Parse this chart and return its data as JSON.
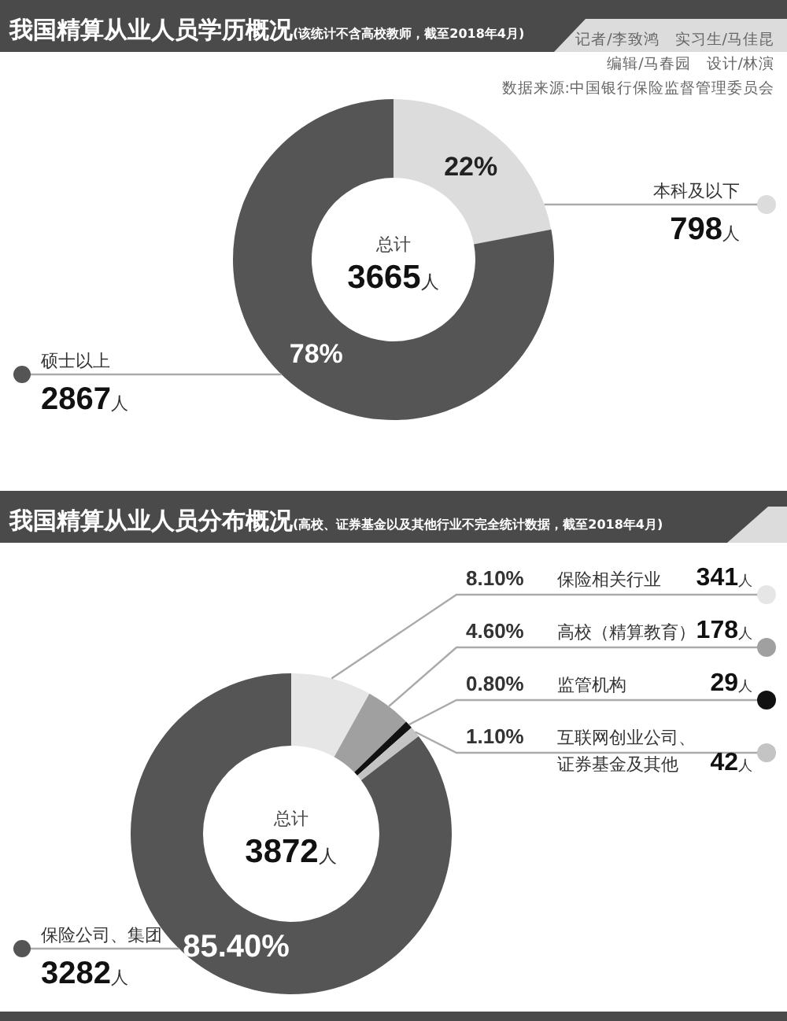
{
  "chart_data": [
    {
      "type": "donut",
      "title": "我国精算从业人员学历概况",
      "subtitle": "(该统计不含高校教师，截至2018年4月)",
      "categories": [
        "本科及以下",
        "硕士以上"
      ],
      "values": [
        22,
        78
      ],
      "colors": [
        "#dcdcdc",
        "#555555"
      ],
      "value_labels": [
        "22%",
        "78%"
      ],
      "annotations": [
        "798人",
        "2867人",
        "总计",
        "3665人",
        "记者/李致鸿　实习生/马佳昆",
        "编辑/马春园　设计/林演",
        "数据来源:中国银行保险监督管理委员会"
      ]
    },
    {
      "type": "donut",
      "title": "我国精算从业人员分布概况",
      "subtitle": "(高校、证券基金以及其他行业不完全统计数据，截至2018年4月)",
      "categories": [
        "保险相关行业",
        "高校（精算教育）",
        "监管机构",
        "互联网创业公司、证券基金及其他",
        "保险公司、集团"
      ],
      "values": [
        8.1,
        4.6,
        0.8,
        1.1,
        85.4
      ],
      "colors": [
        "#e6e6e6",
        "#a0a0a0",
        "#111111",
        "#c4c4c4",
        "#555555"
      ],
      "value_labels": [
        "8.10%",
        "4.60%",
        "0.80%",
        "1.10%",
        "85.40%"
      ],
      "annotations": [
        "341人",
        "178人",
        "29人",
        "42人",
        "3282人",
        "总计",
        "3872人"
      ]
    }
  ]
}
